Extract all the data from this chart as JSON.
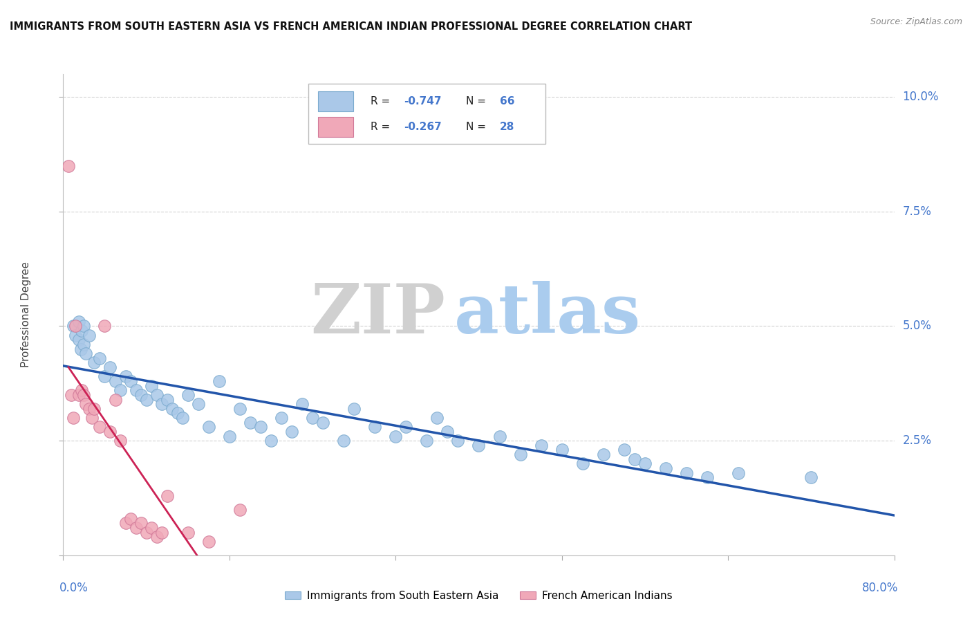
{
  "title": "IMMIGRANTS FROM SOUTH EASTERN ASIA VS FRENCH AMERICAN INDIAN PROFESSIONAL DEGREE CORRELATION CHART",
  "source": "Source: ZipAtlas.com",
  "ylabel": "Professional Degree",
  "blue_R": -0.747,
  "blue_N": 66,
  "pink_R": -0.267,
  "pink_N": 28,
  "legend_label_blue": "Immigrants from South Eastern Asia",
  "legend_label_pink": "French American Indians",
  "blue_color": "#aac8e8",
  "pink_color": "#f0a8b8",
  "blue_edge_color": "#7aaace",
  "pink_edge_color": "#d07898",
  "blue_line_color": "#2255aa",
  "pink_line_color": "#cc2255",
  "grid_color": "#cccccc",
  "right_label_color": "#4477cc",
  "title_color": "#111111",
  "source_color": "#888888",
  "watermark_zip_color": "#d0d0d0",
  "watermark_atlas_color": "#aaccee",
  "xlim": [
    0,
    80
  ],
  "ylim": [
    0,
    10.5
  ],
  "yticks": [
    0,
    2.5,
    5.0,
    7.5,
    10.0
  ],
  "blue_scatter_x": [
    1.0,
    1.2,
    1.5,
    1.5,
    1.7,
    1.8,
    2.0,
    2.0,
    2.2,
    2.5,
    3.0,
    3.5,
    4.0,
    4.5,
    5.0,
    5.5,
    6.0,
    6.5,
    7.0,
    7.5,
    8.0,
    8.5,
    9.0,
    9.5,
    10.0,
    10.5,
    11.0,
    11.5,
    12.0,
    13.0,
    14.0,
    15.0,
    16.0,
    17.0,
    18.0,
    19.0,
    20.0,
    21.0,
    22.0,
    23.0,
    24.0,
    25.0,
    27.0,
    28.0,
    30.0,
    32.0,
    33.0,
    35.0,
    36.0,
    37.0,
    38.0,
    40.0,
    42.0,
    44.0,
    46.0,
    48.0,
    50.0,
    52.0,
    54.0,
    55.0,
    56.0,
    58.0,
    60.0,
    62.0,
    65.0,
    72.0
  ],
  "blue_scatter_y": [
    5.0,
    4.8,
    5.1,
    4.7,
    4.5,
    4.9,
    4.6,
    5.0,
    4.4,
    4.8,
    4.2,
    4.3,
    3.9,
    4.1,
    3.8,
    3.6,
    3.9,
    3.8,
    3.6,
    3.5,
    3.4,
    3.7,
    3.5,
    3.3,
    3.4,
    3.2,
    3.1,
    3.0,
    3.5,
    3.3,
    2.8,
    3.8,
    2.6,
    3.2,
    2.9,
    2.8,
    2.5,
    3.0,
    2.7,
    3.3,
    3.0,
    2.9,
    2.5,
    3.2,
    2.8,
    2.6,
    2.8,
    2.5,
    3.0,
    2.7,
    2.5,
    2.4,
    2.6,
    2.2,
    2.4,
    2.3,
    2.0,
    2.2,
    2.3,
    2.1,
    2.0,
    1.9,
    1.8,
    1.7,
    1.8,
    1.7
  ],
  "pink_scatter_x": [
    0.5,
    0.8,
    1.0,
    1.2,
    1.5,
    1.8,
    2.0,
    2.2,
    2.5,
    2.8,
    3.0,
    3.5,
    4.0,
    4.5,
    5.0,
    5.5,
    6.0,
    6.5,
    7.0,
    7.5,
    8.0,
    8.5,
    9.0,
    9.5,
    10.0,
    12.0,
    14.0,
    17.0
  ],
  "pink_scatter_y": [
    8.5,
    3.5,
    3.0,
    5.0,
    3.5,
    3.6,
    3.5,
    3.3,
    3.2,
    3.0,
    3.2,
    2.8,
    5.0,
    2.7,
    3.4,
    2.5,
    0.7,
    0.8,
    0.6,
    0.7,
    0.5,
    0.6,
    0.4,
    0.5,
    1.3,
    0.5,
    0.3,
    1.0
  ],
  "blue_line_x_start": 0,
  "blue_line_x_end": 80,
  "pink_line_x_solid_start": 0.5,
  "pink_line_x_solid_end": 17.0,
  "pink_line_x_dash_end": 25.0
}
